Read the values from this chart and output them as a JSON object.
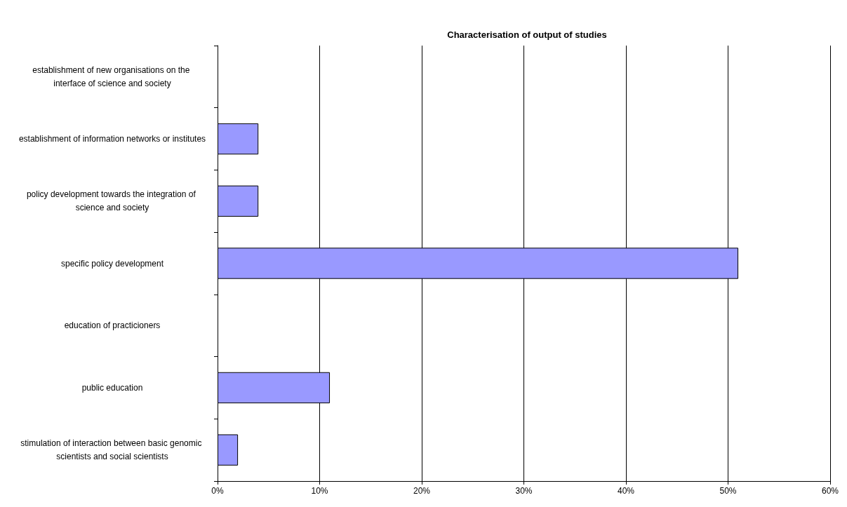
{
  "chart_data": {
    "type": "bar",
    "orientation": "horizontal",
    "title": "Characterisation of output of studies",
    "categories": [
      "establishment of new organisations on the interface of science and society",
      "establishment of information networks or institutes",
      "policy development towards the integration of science and society",
      "specific policy development",
      "education of practicioners",
      "public education",
      "stimulation of interaction between basic genomic scientists and social scientists"
    ],
    "values": [
      0,
      4,
      4,
      51,
      0,
      11,
      2
    ],
    "color": "#9999ff",
    "xlim": [
      0,
      60
    ],
    "xticks": [
      {
        "value": 0,
        "label": "0%"
      },
      {
        "value": 10,
        "label": "10%"
      },
      {
        "value": 20,
        "label": "20%"
      },
      {
        "value": 30,
        "label": "30%"
      },
      {
        "value": 40,
        "label": "40%"
      },
      {
        "value": 50,
        "label": "50%"
      },
      {
        "value": 60,
        "label": "60%"
      }
    ],
    "grid": "x"
  }
}
